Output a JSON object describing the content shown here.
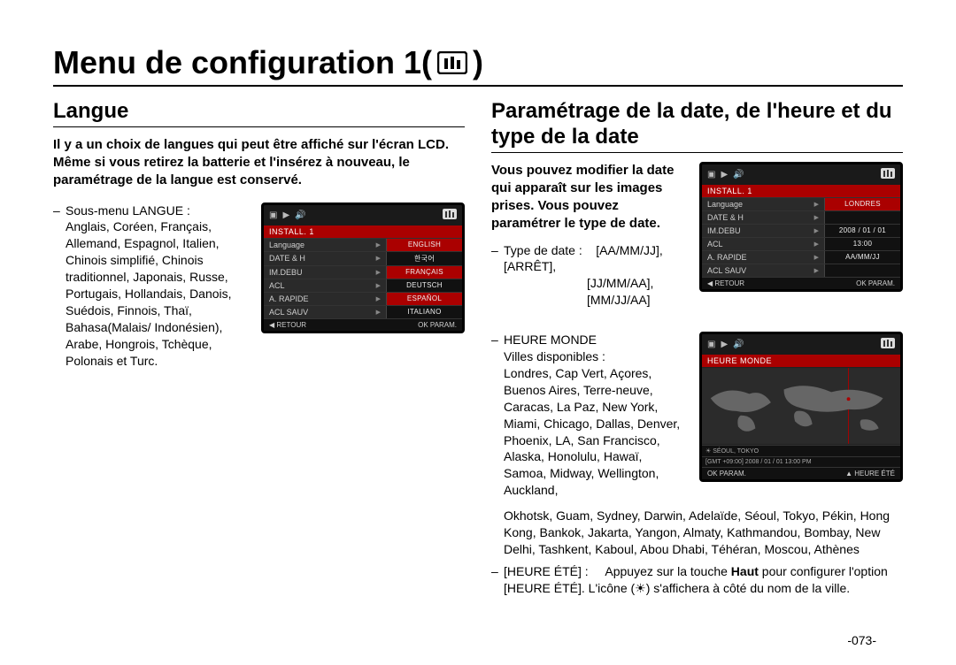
{
  "page_title": "Menu de configuration 1(",
  "page_title_close": ")",
  "page_number": "-073-",
  "left": {
    "heading": "Langue",
    "intro": "Il y a un choix de langues qui peut être affiché sur l'écran LCD. Même si vous retirez la batterie et l'insérez à nouveau, le paramétrage de la langue est conservé.",
    "submenu_label": "Sous-menu LANGUE :",
    "languages_body": "Anglais, Coréen, Français, Allemand, Espagnol, Italien, Chinois simplifié, Chinois traditionnel, Japonais, Russe, Portugais, Hollandais, Danois, Suédois, Finnois, Thaï, Bahasa(Malais/ Indonésien), Arabe, Hongrois, Tchèque, Polonais et Turc.",
    "lcd": {
      "install": "INSTALL. 1",
      "rows": [
        {
          "l": "Language",
          "r": "ENGLISH",
          "sel": true
        },
        {
          "l": "DATE & H",
          "r": "한국어",
          "sel": false
        },
        {
          "l": "IM.DEBU",
          "r": "FRANÇAIS",
          "sel": true
        },
        {
          "l": "ACL",
          "r": "DEUTSCH",
          "sel": false
        },
        {
          "l": "A. RAPIDE",
          "r": "ESPAÑOL",
          "sel": true
        },
        {
          "l": "ACL SAUV",
          "r": "ITALIANO",
          "sel": false
        }
      ],
      "bottom_left": "◀  RETOUR",
      "bottom_right": "OK   PARAM."
    }
  },
  "right": {
    "heading": "Paramétrage de la date, de l'heure et du type de la date",
    "intro": "Vous pouvez modifier la date qui apparaît sur les images prises. Vous pouvez paramétrer le type de date.",
    "type_label": "Type de date :",
    "type_values_1": "[AA/MM/JJ], [ARRÊT],",
    "type_values_2": "[JJ/MM/AA], [MM/JJ/AA]",
    "lcd1": {
      "install": "INSTALL. 1",
      "rows": [
        {
          "l": "Language",
          "r": "LONDRES",
          "sel": true
        },
        {
          "l": "DATE & H",
          "r": "",
          "sel": false
        },
        {
          "l": "IM.DEBU",
          "r": "2008 / 01 / 01",
          "sel": false
        },
        {
          "l": "ACL",
          "r": "13:00",
          "sel": false
        },
        {
          "l": "A. RAPIDE",
          "r": "AA/MM/JJ",
          "sel": false
        },
        {
          "l": "ACL SAUV",
          "r": "",
          "sel": false
        }
      ],
      "bottom_left": "◀  RETOUR",
      "bottom_right": "OK   PARAM."
    },
    "world_label": "HEURE MONDE",
    "cities_label": "Villes disponibles :",
    "cities_body_1": "Londres, Cap Vert, Açores, Buenos Aires, Terre-neuve, Caracas, La Paz, New York, Miami, Chicago, Dallas, Denver, Phoenix, LA, San Francisco, Alaska, Honolulu, Hawaï, Samoa, Midway, Wellington, Auckland, Okhotsk, Guam, Sydney, Darwin, Adelaïde, Séoul, Tokyo, Pékin, Hong Kong, Bankok, Jakarta, Yangon, Almaty, Kathmandou, Bombay, New Delhi, Tashkent, Kaboul, Abou Dhabi, Téhéran, Moscou, Athènes",
    "lcd2": {
      "title": "HEURE MONDE",
      "city": "SÉOUL, TOKYO",
      "gmt": "[GMT +09:00] 2008 / 01 / 01  13:00 PM",
      "bottom_left": "OK   PARAM.",
      "bottom_right": "▲  HEURE ÉTÉ"
    },
    "dst_label": "[HEURE ÉTÉ] :",
    "dst_body_1": "Appuyez sur la touche ",
    "dst_body_bold": "Haut",
    "dst_body_2": " pour configurer l'option [HEURE ÉTÉ]. L'icône (",
    "dst_body_3": ") s'affichera à côté du nom de la ville."
  }
}
